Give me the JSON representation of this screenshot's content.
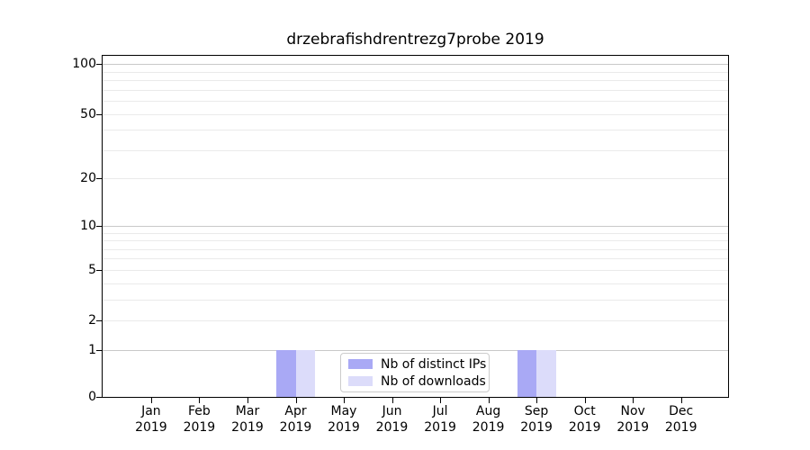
{
  "chart_data": {
    "type": "bar",
    "title": "drzebrafishdrentrezg7probe 2019",
    "categories": [
      "Jan",
      "Feb",
      "Mar",
      "Apr",
      "May",
      "Jun",
      "Jul",
      "Aug",
      "Sep",
      "Oct",
      "Nov",
      "Dec"
    ],
    "year_label": "2019",
    "series": [
      {
        "name": "Nb of distinct IPs",
        "color": "#a9a9f5",
        "values": [
          0,
          0,
          0,
          1,
          0,
          0,
          0,
          0,
          1,
          0,
          0,
          0
        ]
      },
      {
        "name": "Nb of downloads",
        "color": "#dcdcfa",
        "values": [
          0,
          0,
          0,
          1,
          0,
          0,
          0,
          0,
          1,
          0,
          0,
          0
        ]
      }
    ],
    "y_axis": {
      "scale": "log1p",
      "tick_values": [
        0,
        1,
        2,
        5,
        10,
        20,
        50,
        100
      ],
      "tick_labels": [
        "0",
        "1",
        "2",
        "5",
        "10",
        "20",
        "50",
        "100"
      ],
      "major_grid_values": [
        1,
        10,
        100
      ],
      "minor_grid_values": [
        2,
        3,
        4,
        5,
        6,
        7,
        8,
        9,
        20,
        30,
        40,
        50,
        60,
        70,
        80,
        90
      ],
      "ymin": 0,
      "ymax": 112
    },
    "legend_position": "lower center",
    "grid": true
  },
  "colors": {
    "major_grid": "#c9c9c9",
    "minor_grid": "#eaeaea",
    "spine": "#000000",
    "legend_border": "#cccccc",
    "background": "#ffffff"
  }
}
